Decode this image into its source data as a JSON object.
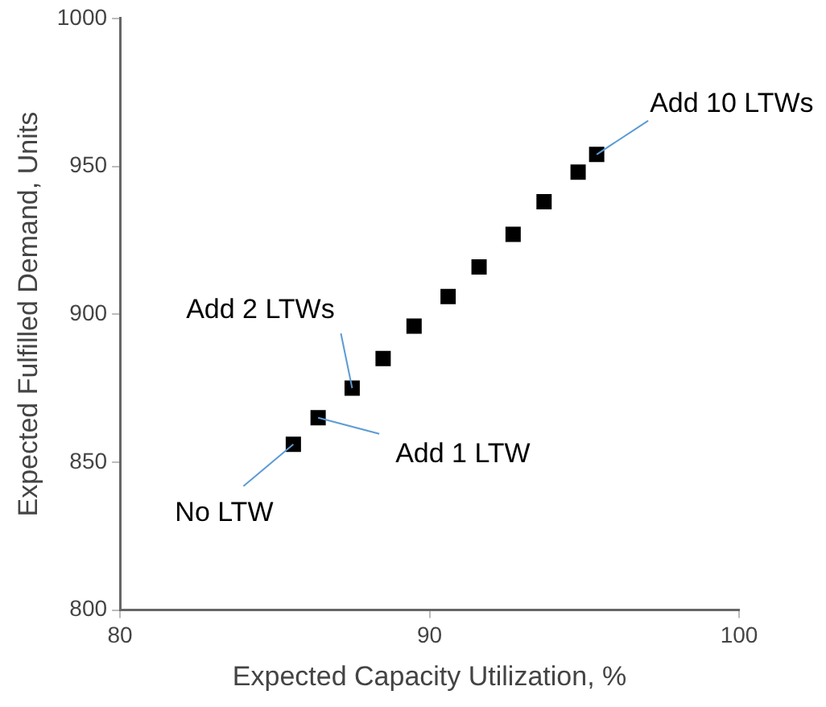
{
  "chart_data": {
    "type": "scatter",
    "xlabel": "Expected Capacity Utilization, %",
    "ylabel": "Expected Fulfilled Demand, Units",
    "x": [
      85.6,
      86.4,
      87.5,
      88.5,
      89.5,
      90.6,
      91.6,
      92.7,
      93.7,
      94.8,
      95.4
    ],
    "series": [
      {
        "color": "#000000",
        "values": [
          856,
          865,
          875,
          885,
          896,
          906,
          916,
          927,
          938,
          948,
          954
        ]
      }
    ],
    "xlim": [
      80,
      100
    ],
    "xticks": [
      80,
      90,
      100
    ],
    "ylim": [
      800,
      1000
    ],
    "yticks": [
      800,
      850,
      900,
      950,
      1000
    ],
    "marker": "square",
    "legend": false,
    "grid": false,
    "annotations": [
      {
        "text": "No LTW",
        "x": 85.6,
        "y": 856
      },
      {
        "text": "Add 1 LTW",
        "x": 86.4,
        "y": 865
      },
      {
        "text": "Add 2 LTWs",
        "x": 87.5,
        "y": 875
      },
      {
        "text": "Add 10 LTWs",
        "x": 95.4,
        "y": 954
      }
    ]
  }
}
